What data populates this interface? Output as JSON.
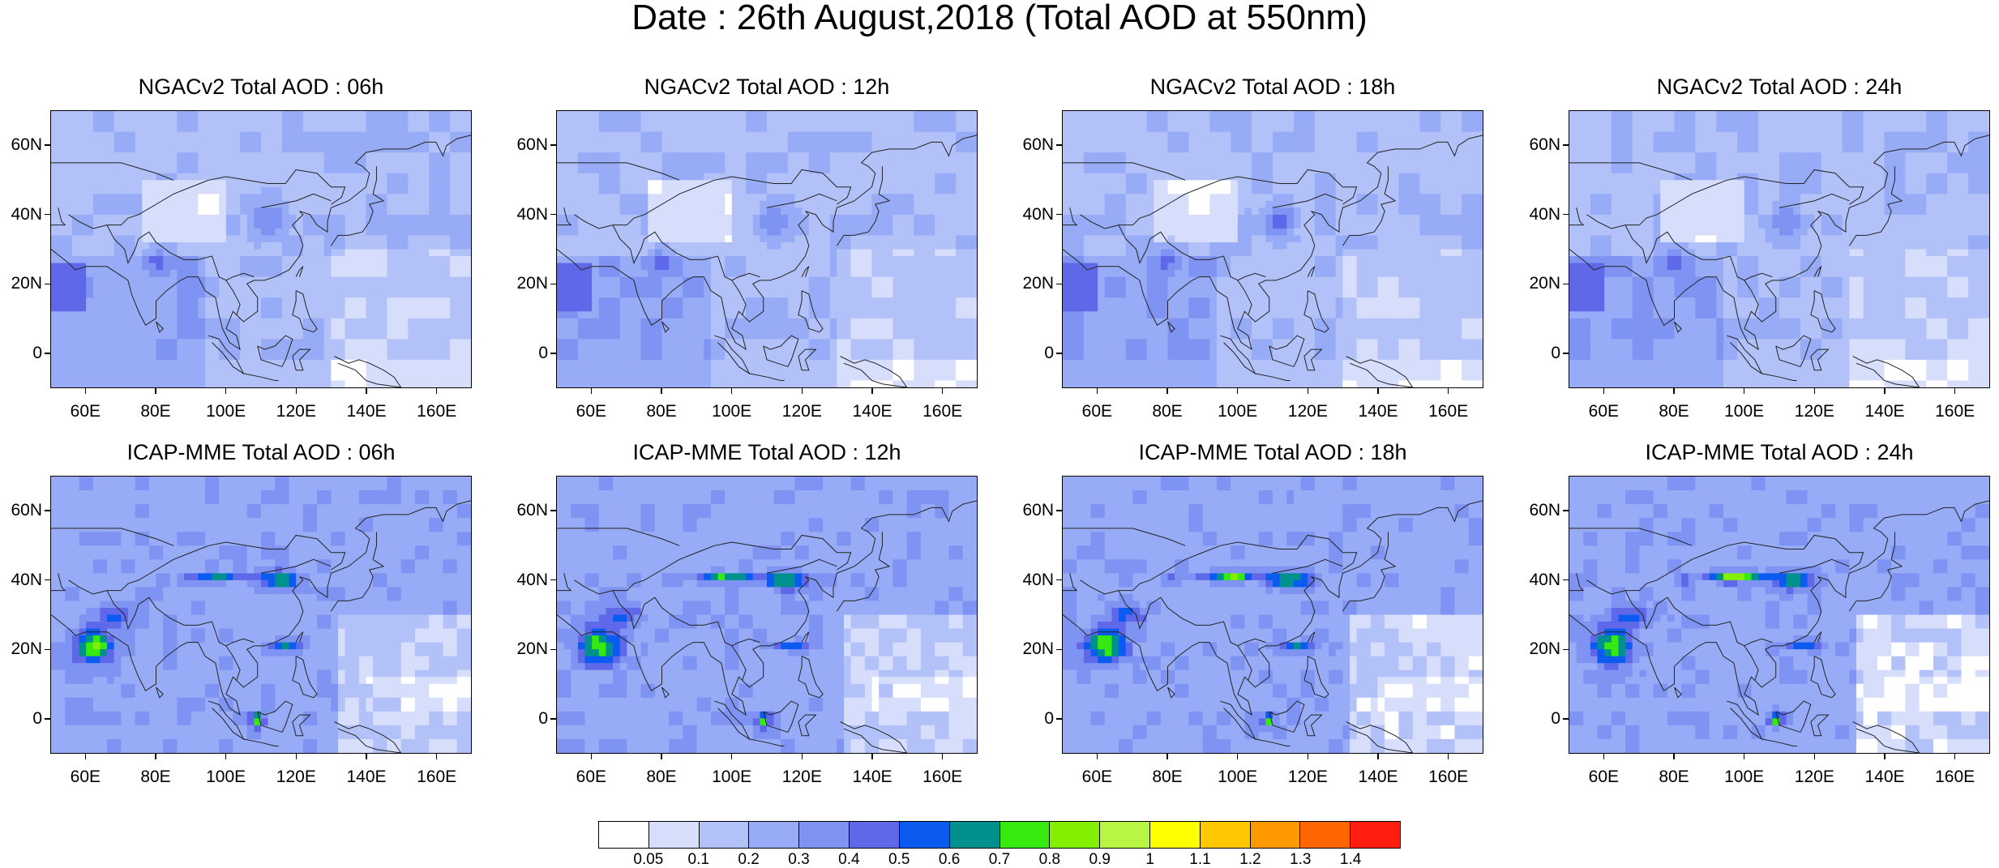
{
  "title": "Date : 26th August,2018 (Total AOD at 550nm)",
  "panels": [
    {
      "title": "NGACv2 Total AOD : 06h",
      "model": "ngac",
      "hour": 6
    },
    {
      "title": "NGACv2 Total AOD : 12h",
      "model": "ngac",
      "hour": 12
    },
    {
      "title": "NGACv2 Total AOD : 18h",
      "model": "ngac",
      "hour": 18
    },
    {
      "title": "NGACv2 Total AOD : 24h",
      "model": "ngac",
      "hour": 24
    },
    {
      "title": "ICAP-MME Total AOD : 06h",
      "model": "icap",
      "hour": 6
    },
    {
      "title": "ICAP-MME Total AOD : 12h",
      "model": "icap",
      "hour": 12
    },
    {
      "title": "ICAP-MME Total AOD : 18h",
      "model": "icap",
      "hour": 18
    },
    {
      "title": "ICAP-MME Total AOD : 24h",
      "model": "icap",
      "hour": 24
    }
  ],
  "axes": {
    "lat_ticks": [
      {
        "value": 60,
        "label": "60N"
      },
      {
        "value": 40,
        "label": "40N"
      },
      {
        "value": 20,
        "label": "20N"
      },
      {
        "value": 0,
        "label": "0"
      }
    ],
    "lon_ticks": [
      {
        "value": 60,
        "label": "60E"
      },
      {
        "value": 80,
        "label": "80E"
      },
      {
        "value": 100,
        "label": "100E"
      },
      {
        "value": 120,
        "label": "120E"
      },
      {
        "value": 140,
        "label": "140E"
      },
      {
        "value": 160,
        "label": "160E"
      }
    ],
    "lon_range": [
      50,
      170
    ],
    "lat_range": [
      -10,
      70
    ]
  },
  "colorbar": {
    "levels": [
      "0.05",
      "0.1",
      "0.2",
      "0.3",
      "0.4",
      "0.5",
      "0.6",
      "0.7",
      "0.8",
      "0.9",
      "1",
      "1.1",
      "1.2",
      "1.3",
      "1.4"
    ],
    "colors": [
      "#ffffff",
      "#d6defc",
      "#b3c1f9",
      "#97abf7",
      "#7f93f2",
      "#6068ea",
      "#0b5bf0",
      "#00918f",
      "#36e90e",
      "#82f000",
      "#b9f545",
      "#ffff00",
      "#ffc800",
      "#ff9900",
      "#ff6600",
      "#ff1e10"
    ]
  }
}
